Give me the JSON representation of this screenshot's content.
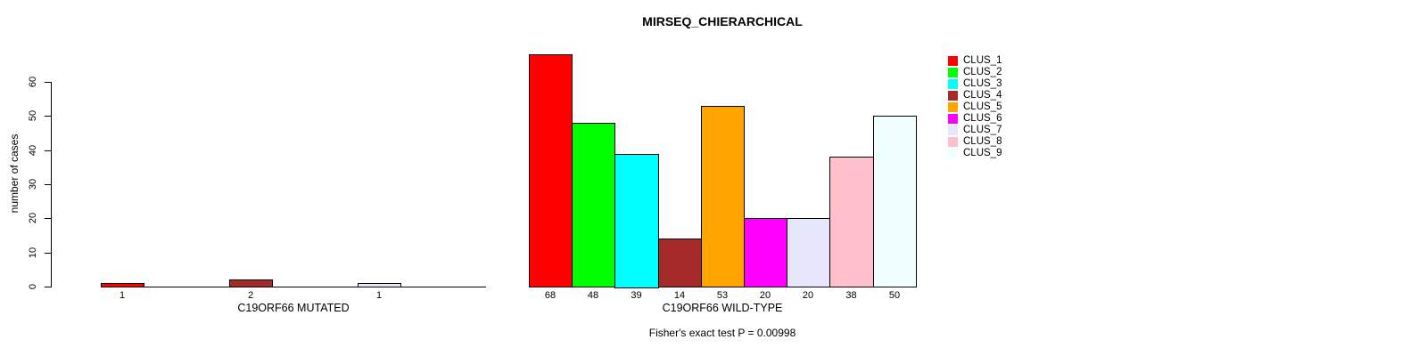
{
  "title": "MIRSEQ_CHIERARCHICAL",
  "footer": "Fisher's exact test P = 0.00998",
  "y_axis": {
    "label": "number of cases",
    "ticks": [
      0,
      10,
      20,
      30,
      40,
      50,
      60
    ],
    "range": [
      0,
      60
    ]
  },
  "colors": {
    "CLUS_1": "#FF0000",
    "CLUS_2": "#00FF00",
    "CLUS_3": "#00FFFF",
    "CLUS_4": "#A52A2A",
    "CLUS_5": "#FFA500",
    "CLUS_6": "#FF00FF",
    "CLUS_7": "#E6E6FA",
    "CLUS_8": "#FFC0CB",
    "CLUS_9": "#F0FFFF"
  },
  "legend": {
    "position": "right",
    "items": [
      "CLUS_1",
      "CLUS_2",
      "CLUS_3",
      "CLUS_4",
      "CLUS_5",
      "CLUS_6",
      "CLUS_7",
      "CLUS_8",
      "CLUS_9"
    ]
  },
  "chart_data": [
    {
      "type": "bar",
      "title": "MIRSEQ_CHIERARCHICAL",
      "xlabel": "C19ORF66 MUTATED",
      "ylabel": "number of cases",
      "ylim": [
        0,
        60
      ],
      "yticks": [
        0,
        10,
        20,
        30,
        40,
        50,
        60
      ],
      "grid": false,
      "categories": [
        "CLUS_1",
        "CLUS_2",
        "CLUS_3",
        "CLUS_4",
        "CLUS_5",
        "CLUS_6",
        "CLUS_7",
        "CLUS_8",
        "CLUS_9"
      ],
      "values": [
        1,
        0,
        0,
        2,
        0,
        0,
        1,
        0,
        0
      ],
      "bar_labels": [
        "1",
        "",
        "",
        "2",
        "",
        "",
        "1",
        "",
        ""
      ]
    },
    {
      "type": "bar",
      "title": "MIRSEQ_CHIERARCHICAL",
      "xlabel": "C19ORF66 WILD-TYPE",
      "ylabel": "number of cases",
      "ylim": [
        0,
        60
      ],
      "yticks": [
        0,
        10,
        20,
        30,
        40,
        50,
        60
      ],
      "grid": false,
      "categories": [
        "CLUS_1",
        "CLUS_2",
        "CLUS_3",
        "CLUS_4",
        "CLUS_5",
        "CLUS_6",
        "CLUS_7",
        "CLUS_8",
        "CLUS_9"
      ],
      "values": [
        68,
        48,
        39,
        14,
        53,
        20,
        20,
        38,
        50
      ],
      "bar_labels": [
        "68",
        "48",
        "39",
        "14",
        "53",
        "20",
        "20",
        "38",
        "50"
      ],
      "annotation": "Fisher's exact test P = 0.00998"
    }
  ]
}
